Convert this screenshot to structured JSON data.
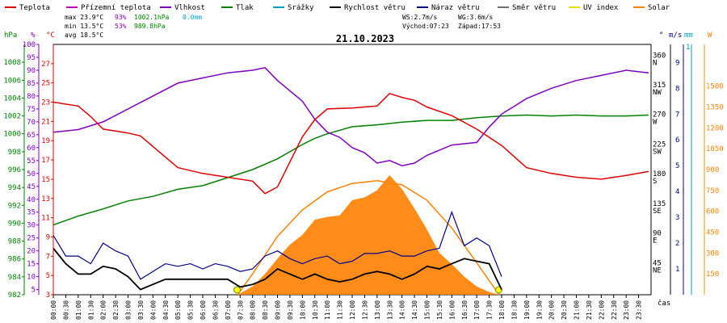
{
  "chart_data": {
    "type": "line",
    "date": "21.10.2023",
    "xlabel": "čas",
    "legend": [
      {
        "name": "Teplota",
        "color": "#e00000"
      },
      {
        "name": "Přízemní teplota",
        "color": "#c000c0"
      },
      {
        "name": "Vlhkost",
        "color": "#8000c0"
      },
      {
        "name": "Tlak",
        "color": "#008000"
      },
      {
        "name": "Srážky",
        "color": "#00a0c0"
      },
      {
        "name": "Rychlost větru",
        "color": "#000000"
      },
      {
        "name": "Náraz větru",
        "color": "#00008b"
      },
      {
        "name": "Směr větru",
        "color": "#707070"
      },
      {
        "name": "UV index",
        "color": "#e0e000"
      },
      {
        "name": "Solar",
        "color": "#ff8000"
      }
    ],
    "stats": {
      "max_temp": "max 23.9°C",
      "max_hum": "93%",
      "max_press": "1002.1hPa",
      "rain": "0.0mm",
      "min_temp": "min 13.5°C",
      "min_hum": "53%",
      "min_press": "989.8hPa",
      "avg_temp": "avg 18.5°C",
      "ws": "WS:2.7m/s",
      "wg": "WG:3.6m/s",
      "sunrise": "Východ:07:23",
      "sunset": "Západ:17:53"
    },
    "axis_units": {
      "pressure": "hPa",
      "humidity": "%",
      "temp": "°C",
      "direction": "°",
      "wind": "m/s",
      "rain": "mm",
      "solar": "W"
    },
    "axes": {
      "pressure": {
        "ticks": [
          "1008",
          "1006",
          "1004",
          "1002",
          "1000",
          "998",
          "996",
          "994",
          "992",
          "990",
          "988",
          "986",
          "984",
          "982"
        ],
        "range": [
          982,
          1010
        ]
      },
      "humidity": {
        "ticks": [
          "100",
          "95",
          "90",
          "85",
          "80",
          "75",
          "70",
          "65",
          "60",
          "55",
          "50",
          "45",
          "40",
          "35",
          "30",
          "25",
          "20",
          "15",
          "10",
          "5"
        ],
        "range": [
          3,
          100
        ]
      },
      "temp": {
        "ticks": [
          "27",
          "25",
          "23",
          "21",
          "19",
          "17",
          "15",
          "13",
          "11",
          "9",
          "7",
          "5",
          "3"
        ],
        "range": [
          3,
          29
        ]
      },
      "direction": {
        "ticks": [
          "360",
          "315",
          "270",
          "225",
          "180",
          "135",
          "90",
          "45"
        ],
        "labels": [
          "N",
          "NW",
          "W",
          "SW",
          "S",
          "SE",
          "E",
          "NE"
        ]
      },
      "wind": {
        "ticks": [
          "9",
          "8",
          "7",
          "6",
          "5",
          "4",
          "3",
          "2",
          "1"
        ],
        "range": [
          0,
          9.7
        ]
      },
      "rain": {
        "ticks": [
          "1"
        ]
      },
      "solar": {
        "ticks": [
          "1500",
          "1350",
          "1200",
          "1050",
          "900",
          "750",
          "600",
          "450",
          "300",
          "150"
        ],
        "range": [
          0,
          1800
        ]
      }
    },
    "x_ticks": [
      "00:00",
      "00:30",
      "01:00",
      "01:30",
      "02:00",
      "02:30",
      "03:00",
      "03:30",
      "04:00",
      "04:30",
      "05:00",
      "05:30",
      "06:00",
      "06:30",
      "07:00",
      "07:30",
      "08:00",
      "08:30",
      "09:00",
      "09:30",
      "10:00",
      "10:30",
      "11:00",
      "11:30",
      "12:00",
      "12:30",
      "13:00",
      "13:30",
      "14:00",
      "14:30",
      "15:00",
      "15:30",
      "16:00",
      "16:30",
      "17:00",
      "17:30",
      "18:00",
      "18:30",
      "19:00",
      "19:30",
      "20:00",
      "20:30",
      "21:00",
      "21:30",
      "22:00",
      "22:30",
      "23:00",
      "23:30"
    ],
    "series": [
      {
        "name": "Teplota",
        "unit": "°C",
        "x": [
          0,
          1,
          1.5,
          2,
          2.5,
          3,
          3.5,
          4,
          5,
          6,
          7,
          8,
          8.5,
          9,
          10,
          10.5,
          11,
          12,
          13,
          13.5,
          14,
          14.5,
          15,
          16,
          17,
          18,
          19,
          20,
          21,
          22,
          23,
          23.9
        ],
        "y": [
          23,
          22.6,
          21.5,
          20.2,
          20,
          19.8,
          19.5,
          18.4,
          16.2,
          15.6,
          15.2,
          14.8,
          13.5,
          14.2,
          19.4,
          21.2,
          22.3,
          22.4,
          22.6,
          23.9,
          23.5,
          23.2,
          22.5,
          21.6,
          20.2,
          18.5,
          16.2,
          15.6,
          15.2,
          15.0,
          15.4,
          15.8
        ]
      },
      {
        "name": "Vlhkost",
        "unit": "%",
        "x": [
          0,
          1,
          2,
          3,
          4,
          5,
          6,
          7,
          8,
          8.5,
          9,
          10,
          10.5,
          11,
          11.5,
          12,
          12.5,
          13,
          13.5,
          14,
          14.5,
          15,
          16,
          17,
          17.5,
          18,
          19,
          20,
          21,
          22,
          23,
          23.9
        ],
        "y": [
          66,
          67,
          70,
          75,
          80,
          85,
          87,
          89,
          90,
          91,
          86,
          78,
          71,
          66,
          64,
          60,
          58,
          54,
          55,
          53,
          54,
          57,
          61,
          62,
          68,
          73,
          79,
          83,
          86,
          88,
          90,
          89
        ]
      },
      {
        "name": "Tlak",
        "unit": "hPa",
        "x": [
          0,
          1,
          2,
          3,
          4,
          5,
          6,
          7,
          8,
          9,
          10,
          10.5,
          11,
          11.5,
          12,
          13,
          14,
          15,
          16,
          17,
          18,
          19,
          20,
          21,
          22,
          23,
          23.9
        ],
        "y": [
          989.8,
          990.8,
          991.6,
          992.5,
          993.0,
          993.8,
          994.2,
          995.1,
          996.0,
          997.2,
          998.8,
          999.5,
          1000.0,
          1000.4,
          1000.8,
          1001.0,
          1001.3,
          1001.5,
          1001.5,
          1001.8,
          1002.0,
          1002.1,
          1002.0,
          1002.1,
          1002.0,
          1002.0,
          1002.1
        ]
      },
      {
        "name": "Rychlost větru",
        "unit": "m/s",
        "x": [
          0,
          0.5,
          1,
          1.5,
          2,
          2.5,
          3,
          3.5,
          4,
          4.5,
          5,
          5.5,
          6,
          6.5,
          7,
          7.5,
          8,
          8.5,
          9,
          9.5,
          10,
          10.5,
          11,
          11.5,
          12,
          12.5,
          13,
          13.5,
          14,
          14.5,
          15,
          15.5,
          16,
          16.5,
          17,
          17.5,
          18
        ],
        "y": [
          1.8,
          1.2,
          0.8,
          0.8,
          1.1,
          1.0,
          0.7,
          0.2,
          0.4,
          0.6,
          0.6,
          0.6,
          0.6,
          0.6,
          0.6,
          0.3,
          0.4,
          0.6,
          1.0,
          0.8,
          0.6,
          0.8,
          0.6,
          0.5,
          0.6,
          0.8,
          0.9,
          0.8,
          0.6,
          0.8,
          1.1,
          1.0,
          1.2,
          1.4,
          1.3,
          1.2,
          0.2
        ]
      },
      {
        "name": "Náraz větru",
        "unit": "m/s",
        "x": [
          0,
          0.5,
          1,
          1.5,
          2,
          2.5,
          3,
          3.5,
          4,
          4.5,
          5,
          5.5,
          6,
          6.5,
          7,
          7.5,
          8,
          8.5,
          9,
          9.5,
          10,
          10.5,
          11,
          11.5,
          12,
          12.5,
          13,
          13.5,
          14,
          14.5,
          15,
          15.5,
          16,
          16.5,
          17,
          17.5,
          18
        ],
        "y": [
          2.3,
          1.5,
          1.5,
          1.2,
          2.0,
          1.7,
          1.5,
          0.6,
          0.9,
          1.2,
          1.1,
          1.2,
          1.0,
          1.2,
          1.1,
          0.9,
          1.0,
          1.5,
          1.7,
          1.4,
          1.2,
          1.4,
          1.5,
          1.2,
          1.3,
          1.6,
          1.6,
          1.7,
          1.5,
          1.5,
          1.7,
          1.8,
          3.2,
          1.9,
          2.2,
          1.9,
          0.7
        ]
      },
      {
        "name": "Solar",
        "unit": "W",
        "x": [
          7.4,
          8,
          8.5,
          9,
          9.5,
          10,
          10.5,
          11,
          11.5,
          12,
          12.5,
          13,
          13.5,
          14,
          14.5,
          15,
          15.5,
          16,
          16.5,
          17,
          17.5,
          17.9
        ],
        "y": [
          0,
          60,
          150,
          260,
          360,
          430,
          540,
          560,
          570,
          680,
          700,
          750,
          860,
          760,
          620,
          470,
          300,
          220,
          130,
          60,
          20,
          0
        ]
      },
      {
        "name": "Solar max",
        "unit": "W",
        "x": [
          7.4,
          8,
          9,
          10,
          11,
          12,
          13,
          14,
          15,
          16,
          17,
          17.9
        ],
        "y": [
          0,
          150,
          420,
          610,
          740,
          800,
          820,
          790,
          680,
          480,
          230,
          0
        ]
      }
    ]
  }
}
